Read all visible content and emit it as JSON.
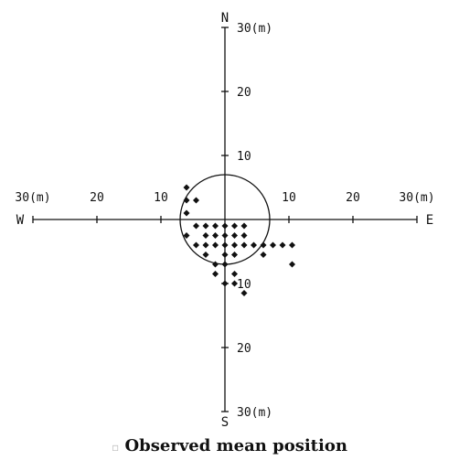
{
  "chart_data": {
    "type": "scatter",
    "title": "",
    "caption": "Observed mean position",
    "directions": {
      "north": "N",
      "south": "S",
      "west": "W",
      "east": "E"
    },
    "x_ticks": [
      {
        "value": -30,
        "label": "30(m)"
      },
      {
        "value": -20,
        "label": "20"
      },
      {
        "value": -10,
        "label": "10"
      },
      {
        "value": 10,
        "label": "10"
      },
      {
        "value": 20,
        "label": "20"
      },
      {
        "value": 30,
        "label": "30(m)"
      }
    ],
    "y_ticks": [
      {
        "value": 30,
        "label": "30(m)"
      },
      {
        "value": 20,
        "label": "20"
      },
      {
        "value": 10,
        "label": "10"
      },
      {
        "value": -10,
        "label": "10"
      },
      {
        "value": -20,
        "label": "20"
      },
      {
        "value": -30,
        "label": "30(m)"
      }
    ],
    "xlim": [
      -30,
      30
    ],
    "ylim": [
      -30,
      30
    ],
    "circle_radius": 7,
    "points": [
      {
        "x": -6,
        "y": 5
      },
      {
        "x": -6,
        "y": 3
      },
      {
        "x": -4.5,
        "y": 3
      },
      {
        "x": -6,
        "y": 1
      },
      {
        "x": -4.5,
        "y": -1
      },
      {
        "x": -3,
        "y": -1
      },
      {
        "x": -1.5,
        "y": -1
      },
      {
        "x": 0,
        "y": -1
      },
      {
        "x": 1.5,
        "y": -1
      },
      {
        "x": 3,
        "y": -1
      },
      {
        "x": -6,
        "y": -2.5
      },
      {
        "x": -3,
        "y": -2.5
      },
      {
        "x": -1.5,
        "y": -2.5
      },
      {
        "x": 0,
        "y": -2.5
      },
      {
        "x": 1.5,
        "y": -2.5
      },
      {
        "x": 3,
        "y": -2.5
      },
      {
        "x": -4.5,
        "y": -4
      },
      {
        "x": -3,
        "y": -4
      },
      {
        "x": -1.5,
        "y": -4
      },
      {
        "x": 0,
        "y": -4
      },
      {
        "x": 1.5,
        "y": -4
      },
      {
        "x": 3,
        "y": -4
      },
      {
        "x": 4.5,
        "y": -4
      },
      {
        "x": 6,
        "y": -4
      },
      {
        "x": 7.5,
        "y": -4
      },
      {
        "x": 9,
        "y": -4
      },
      {
        "x": 10.5,
        "y": -4
      },
      {
        "x": -3,
        "y": -5.5
      },
      {
        "x": 0,
        "y": -5.5
      },
      {
        "x": 1.5,
        "y": -5.5
      },
      {
        "x": 6,
        "y": -5.5
      },
      {
        "x": -1.5,
        "y": -7
      },
      {
        "x": 0,
        "y": -7
      },
      {
        "x": 10.5,
        "y": -7
      },
      {
        "x": -1.5,
        "y": -8.5
      },
      {
        "x": 1.5,
        "y": -8.5
      },
      {
        "x": 0,
        "y": -10
      },
      {
        "x": 1.5,
        "y": -10
      },
      {
        "x": 3,
        "y": -11.5
      }
    ],
    "grid": false,
    "legend": "none"
  }
}
